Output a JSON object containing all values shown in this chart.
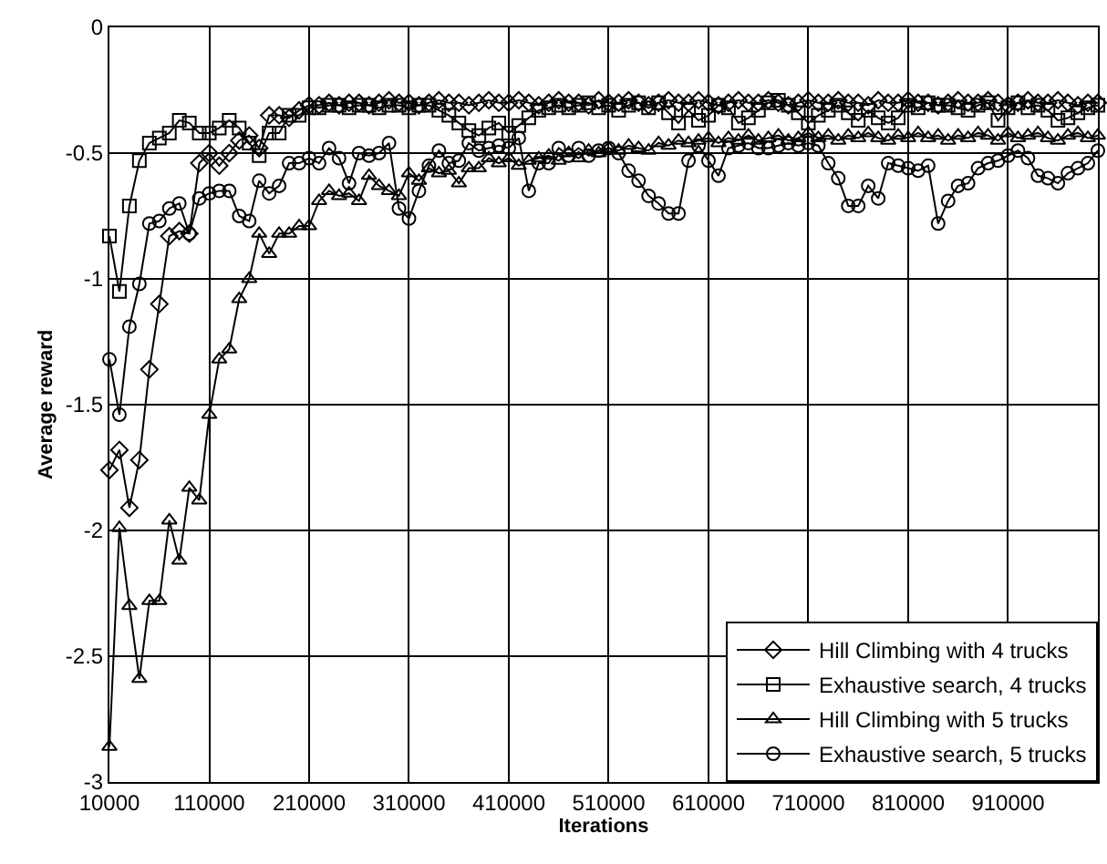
{
  "chart_data": {
    "type": "line",
    "xlabel": "Iterations",
    "ylabel": "Average reward",
    "x": [
      10000,
      20000,
      30000,
      40000,
      50000,
      60000,
      70000,
      80000,
      90000,
      100000,
      110000,
      120000,
      130000,
      140000,
      150000,
      160000,
      170000,
      180000,
      190000,
      200000,
      210000,
      220000,
      230000,
      240000,
      250000,
      260000,
      270000,
      280000,
      290000,
      300000,
      310000,
      320000,
      330000,
      340000,
      350000,
      360000,
      370000,
      380000,
      390000,
      400000,
      410000,
      420000,
      430000,
      440000,
      450000,
      460000,
      470000,
      480000,
      490000,
      500000,
      510000,
      520000,
      530000,
      540000,
      550000,
      560000,
      570000,
      580000,
      590000,
      600000,
      610000,
      620000,
      630000,
      640000,
      650000,
      660000,
      670000,
      680000,
      690000,
      700000,
      710000,
      720000,
      730000,
      740000,
      750000,
      760000,
      770000,
      780000,
      790000,
      800000,
      810000,
      820000,
      830000,
      840000,
      850000,
      860000,
      870000,
      880000,
      890000,
      900000,
      910000,
      920000,
      930000,
      940000,
      950000,
      960000,
      970000,
      980000,
      990000,
      1000000
    ],
    "xlim": [
      10000,
      1000000
    ],
    "xticks": [
      10000,
      110000,
      210000,
      310000,
      410000,
      510000,
      610000,
      710000,
      810000,
      910000
    ],
    "ylim": [
      -3,
      0
    ],
    "yticks": [
      0,
      -0.5,
      -1,
      -1.5,
      -2,
      -2.5,
      -3
    ],
    "grid": true,
    "legend": "bottom right",
    "series": [
      {
        "name": "Hill Climbing with 4 trucks",
        "color": "#000000",
        "marker": "diamond",
        "values": [
          -1.76,
          -1.68,
          -1.91,
          -1.72,
          -1.36,
          -1.1,
          -0.83,
          -0.81,
          -0.82,
          -0.54,
          -0.5,
          -0.55,
          -0.5,
          -0.45,
          -0.43,
          -0.48,
          -0.35,
          -0.35,
          -0.36,
          -0.33,
          -0.31,
          -0.31,
          -0.3,
          -0.31,
          -0.3,
          -0.3,
          -0.31,
          -0.3,
          -0.29,
          -0.3,
          -0.3,
          -0.31,
          -0.3,
          -0.29,
          -0.3,
          -0.3,
          -0.31,
          -0.3,
          -0.29,
          -0.3,
          -0.3,
          -0.29,
          -0.3,
          -0.31,
          -0.3,
          -0.29,
          -0.3,
          -0.3,
          -0.31,
          -0.29,
          -0.3,
          -0.3,
          -0.29,
          -0.3,
          -0.31,
          -0.3,
          -0.29,
          -0.3,
          -0.3,
          -0.29,
          -0.3,
          -0.31,
          -0.3,
          -0.29,
          -0.3,
          -0.3,
          -0.29,
          -0.3,
          -0.31,
          -0.3,
          -0.29,
          -0.3,
          -0.3,
          -0.29,
          -0.3,
          -0.3,
          -0.31,
          -0.29,
          -0.3,
          -0.3,
          -0.29,
          -0.3,
          -0.3,
          -0.31,
          -0.3,
          -0.29,
          -0.3,
          -0.3,
          -0.29,
          -0.3,
          -0.31,
          -0.3,
          -0.29,
          -0.3,
          -0.3,
          -0.29,
          -0.3,
          -0.31,
          -0.3,
          -0.3
        ]
      },
      {
        "name": "Exhaustive search, 4 trucks",
        "color": "#000000",
        "marker": "square",
        "values": [
          -0.83,
          -1.05,
          -0.71,
          -0.53,
          -0.46,
          -0.44,
          -0.42,
          -0.37,
          -0.38,
          -0.42,
          -0.42,
          -0.4,
          -0.37,
          -0.4,
          -0.46,
          -0.51,
          -0.42,
          -0.42,
          -0.35,
          -0.35,
          -0.32,
          -0.32,
          -0.31,
          -0.31,
          -0.32,
          -0.31,
          -0.31,
          -0.32,
          -0.31,
          -0.31,
          -0.32,
          -0.31,
          -0.31,
          -0.33,
          -0.35,
          -0.38,
          -0.41,
          -0.43,
          -0.4,
          -0.38,
          -0.42,
          -0.39,
          -0.36,
          -0.33,
          -0.32,
          -0.31,
          -0.32,
          -0.31,
          -0.3,
          -0.32,
          -0.31,
          -0.33,
          -0.31,
          -0.3,
          -0.32,
          -0.3,
          -0.34,
          -0.38,
          -0.33,
          -0.37,
          -0.35,
          -0.31,
          -0.32,
          -0.38,
          -0.36,
          -0.33,
          -0.3,
          -0.29,
          -0.31,
          -0.34,
          -0.38,
          -0.35,
          -0.33,
          -0.31,
          -0.34,
          -0.37,
          -0.33,
          -0.36,
          -0.38,
          -0.36,
          -0.31,
          -0.32,
          -0.3,
          -0.31,
          -0.31,
          -0.32,
          -0.33,
          -0.31,
          -0.3,
          -0.37,
          -0.32,
          -0.3,
          -0.32,
          -0.31,
          -0.33,
          -0.37,
          -0.36,
          -0.34,
          -0.32,
          -0.31
        ]
      },
      {
        "name": "Hill Climbing with 5 trucks",
        "color": "#000000",
        "marker": "triangle",
        "values": [
          -2.86,
          -1.99,
          -2.3,
          -2.59,
          -2.28,
          -2.28,
          -1.96,
          -2.12,
          -1.83,
          -1.88,
          -1.54,
          -1.32,
          -1.28,
          -1.08,
          -1.0,
          -0.82,
          -0.9,
          -0.82,
          -0.82,
          -0.79,
          -0.79,
          -0.69,
          -0.65,
          -0.67,
          -0.66,
          -0.69,
          -0.59,
          -0.63,
          -0.65,
          -0.67,
          -0.58,
          -0.61,
          -0.56,
          -0.58,
          -0.57,
          -0.62,
          -0.56,
          -0.56,
          -0.52,
          -0.54,
          -0.52,
          -0.55,
          -0.53,
          -0.52,
          -0.51,
          -0.53,
          -0.5,
          -0.52,
          -0.49,
          -0.5,
          -0.48,
          -0.49,
          -0.47,
          -0.48,
          -0.49,
          -0.46,
          -0.47,
          -0.45,
          -0.46,
          -0.45,
          -0.44,
          -0.46,
          -0.44,
          -0.45,
          -0.43,
          -0.45,
          -0.44,
          -0.43,
          -0.45,
          -0.44,
          -0.42,
          -0.44,
          -0.43,
          -0.45,
          -0.43,
          -0.44,
          -0.42,
          -0.44,
          -0.45,
          -0.43,
          -0.44,
          -0.42,
          -0.44,
          -0.43,
          -0.45,
          -0.43,
          -0.44,
          -0.42,
          -0.43,
          -0.45,
          -0.42,
          -0.44,
          -0.43,
          -0.42,
          -0.44,
          -0.45,
          -0.43,
          -0.42,
          -0.44,
          -0.43
        ]
      },
      {
        "name": "Exhaustive search, 5 trucks",
        "color": "#000000",
        "marker": "circle",
        "values": [
          -1.32,
          -1.54,
          -1.19,
          -1.02,
          -0.78,
          -0.77,
          -0.72,
          -0.7,
          -0.82,
          -0.68,
          -0.66,
          -0.65,
          -0.65,
          -0.75,
          -0.77,
          -0.61,
          -0.66,
          -0.63,
          -0.54,
          -0.54,
          -0.52,
          -0.54,
          -0.48,
          -0.52,
          -0.62,
          -0.5,
          -0.51,
          -0.5,
          -0.46,
          -0.72,
          -0.76,
          -0.65,
          -0.55,
          -0.49,
          -0.54,
          -0.53,
          -0.46,
          -0.49,
          -0.48,
          -0.47,
          -0.48,
          -0.44,
          -0.65,
          -0.54,
          -0.54,
          -0.48,
          -0.51,
          -0.48,
          -0.51,
          -0.49,
          -0.48,
          -0.5,
          -0.57,
          -0.61,
          -0.67,
          -0.7,
          -0.74,
          -0.74,
          -0.53,
          -0.47,
          -0.53,
          -0.59,
          -0.48,
          -0.47,
          -0.46,
          -0.48,
          -0.48,
          -0.47,
          -0.46,
          -0.47,
          -0.46,
          -0.47,
          -0.54,
          -0.6,
          -0.71,
          -0.71,
          -0.63,
          -0.68,
          -0.54,
          -0.55,
          -0.56,
          -0.57,
          -0.55,
          -0.78,
          -0.69,
          -0.63,
          -0.62,
          -0.56,
          -0.54,
          -0.53,
          -0.51,
          -0.49,
          -0.52,
          -0.59,
          -0.6,
          -0.62,
          -0.58,
          -0.56,
          -0.54,
          -0.49
        ]
      }
    ]
  }
}
